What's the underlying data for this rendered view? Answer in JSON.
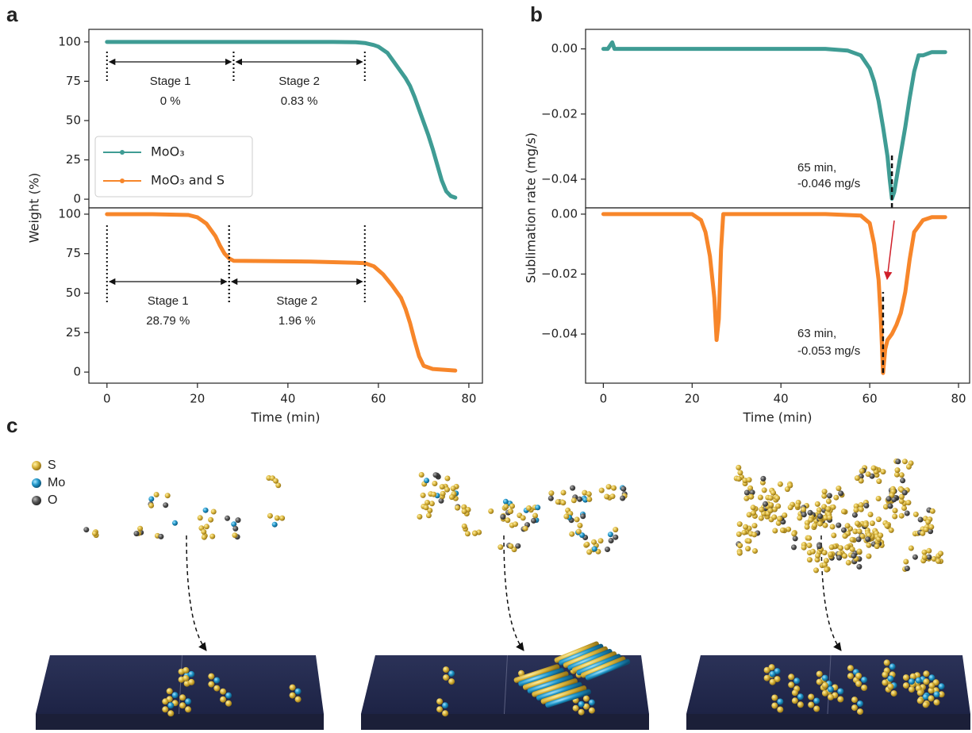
{
  "panel_labels": [
    "a",
    "b",
    "c"
  ],
  "chart_data": [
    {
      "type": "line",
      "y_label": "Weight (%)",
      "xlim": [
        -4,
        83
      ],
      "ylim": [
        -5.5,
        108
      ],
      "yticks": [
        0,
        25,
        50,
        75,
        100
      ],
      "legend": "lower left",
      "series": [
        {
          "name": "MoO₃",
          "color": "#3f9c94",
          "x": [
            0,
            10,
            20,
            30,
            40,
            50,
            55,
            57,
            59,
            60,
            62,
            64,
            66,
            67,
            68,
            69,
            70,
            71,
            72,
            73,
            74,
            75,
            76,
            77
          ],
          "values": [
            100,
            100,
            100,
            100,
            100,
            100,
            99.8,
            99.3,
            98,
            97,
            93,
            85,
            77,
            72,
            65,
            57,
            49,
            41,
            32,
            22,
            12,
            5,
            2,
            1
          ]
        }
      ],
      "stages": [
        {
          "label": "Stage 1",
          "value_label": "0 %",
          "start": 0,
          "end": 28
        },
        {
          "label": "Stage 2",
          "value_label": "0.83 %",
          "start": 28,
          "end": 57
        }
      ]
    },
    {
      "type": "line",
      "x_label": "Time (min)",
      "xlim": [
        -4,
        83
      ],
      "ylim": [
        -7,
        104
      ],
      "xticks": [
        0,
        20,
        40,
        60,
        80
      ],
      "yticks": [
        0,
        25,
        50,
        75,
        100
      ],
      "series": [
        {
          "name": "MoO₃ and S",
          "color": "#f7862a",
          "x": [
            0,
            10,
            18,
            20,
            22,
            24,
            25,
            26,
            27,
            28,
            35,
            45,
            55,
            57,
            59,
            61,
            63,
            65,
            66,
            67,
            68,
            69,
            70,
            72,
            77
          ],
          "values": [
            100,
            100,
            99.5,
            98,
            94,
            86,
            80,
            75,
            72,
            70.5,
            70.3,
            70,
            69.2,
            69,
            67,
            62,
            55,
            47,
            40,
            31,
            20,
            10,
            4,
            2,
            1
          ]
        }
      ],
      "stages": [
        {
          "label": "Stage 1",
          "value_label": "28.79 %",
          "start": 0,
          "end": 27
        },
        {
          "label": "Stage 2",
          "value_label": "1.96 %",
          "start": 27,
          "end": 57
        }
      ]
    },
    {
      "type": "line",
      "y_label": "Sublimation rate (mg/s)",
      "xlim": [
        -4,
        82.5
      ],
      "ylim": [
        -0.0488,
        0.006
      ],
      "yticks": [
        {
          "value": 0,
          "label": "0.00"
        },
        {
          "value": -0.02,
          "label": "−0.02"
        },
        {
          "value": -0.04,
          "label": "−0.04"
        }
      ],
      "series": [
        {
          "color": "#3f9c94",
          "x": [
            0,
            1,
            2,
            2.5,
            3,
            10,
            20,
            30,
            40,
            50,
            55,
            58,
            60,
            61,
            62,
            63,
            64,
            64.5,
            65,
            65.5,
            66,
            67,
            68,
            69,
            70,
            71,
            72,
            74,
            77
          ],
          "values": [
            0,
            0,
            0.002,
            0,
            0,
            0,
            0,
            0,
            0,
            0,
            -0.0005,
            -0.002,
            -0.006,
            -0.01,
            -0.016,
            -0.024,
            -0.033,
            -0.04,
            -0.046,
            -0.044,
            -0.04,
            -0.032,
            -0.024,
            -0.015,
            -0.007,
            -0.002,
            -0.002,
            -0.001,
            -0.001
          ]
        }
      ],
      "peak": {
        "x": 65,
        "y": -0.046,
        "text_lines": [
          "65 min,",
          "-0.046 mg/s"
        ]
      }
    },
    {
      "type": "line",
      "x_label": "Time (min)",
      "xlim": [
        -4,
        82.5
      ],
      "ylim": [
        -0.0564,
        0.0021
      ],
      "xticks": [
        0,
        20,
        40,
        60,
        80
      ],
      "yticks": [
        {
          "value": 0,
          "label": "0.00"
        },
        {
          "value": -0.02,
          "label": "−0.02"
        },
        {
          "value": -0.04,
          "label": "−0.04"
        }
      ],
      "series": [
        {
          "color": "#f7862a",
          "x": [
            0,
            10,
            20,
            22,
            23,
            24,
            25,
            25.5,
            26,
            26.5,
            27,
            30,
            40,
            50,
            58,
            60,
            61,
            62,
            62.5,
            63,
            63.5,
            64,
            65,
            66,
            67,
            68,
            69,
            70,
            72,
            74,
            77
          ],
          "values": [
            0,
            0,
            0,
            -0.002,
            -0.006,
            -0.014,
            -0.028,
            -0.042,
            -0.035,
            -0.012,
            0,
            0,
            0,
            0,
            -0.0005,
            -0.003,
            -0.01,
            -0.022,
            -0.035,
            -0.053,
            -0.045,
            -0.042,
            -0.04,
            -0.037,
            -0.033,
            -0.026,
            -0.015,
            -0.006,
            -0.002,
            -0.001,
            -0.001
          ]
        }
      ],
      "peak": {
        "x": 63,
        "y": -0.053,
        "text_lines": [
          "63 min,",
          "-0.053 mg/s"
        ]
      }
    }
  ],
  "panel_c_legend": [
    "S",
    "Mo",
    "O"
  ]
}
